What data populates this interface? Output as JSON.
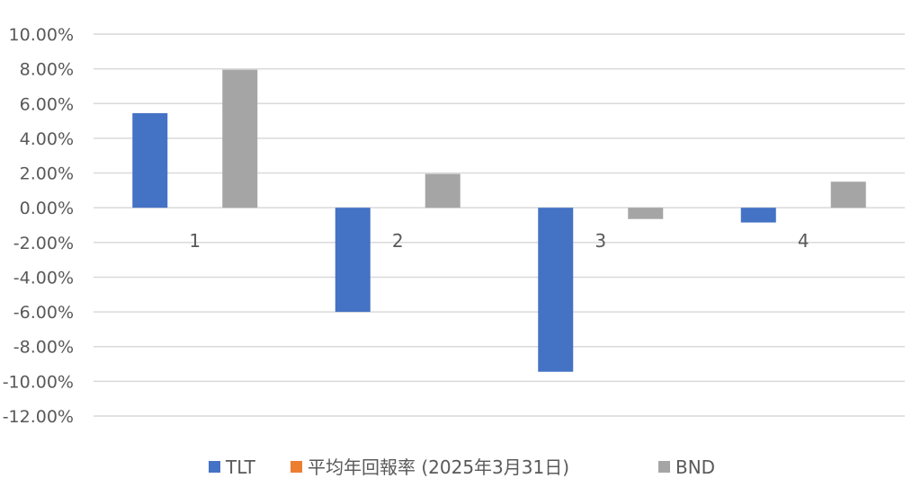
{
  "chart_data": {
    "type": "bar",
    "categories": [
      "1",
      "2",
      "3",
      "4"
    ],
    "series": [
      {
        "name": "TLT",
        "values": [
          5.45,
          -6.0,
          -9.45,
          -0.85
        ],
        "color": "#4472C4"
      },
      {
        "name": "平均年回報率 (2025年3月31日)",
        "values": [
          0,
          0,
          0,
          0
        ],
        "color": "#ED7D31"
      },
      {
        "name": "BND",
        "values": [
          7.95,
          1.95,
          -0.65,
          1.5
        ],
        "color": "#A5A5A5"
      }
    ],
    "ylim": [
      -12,
      10
    ],
    "ytick_step": 2,
    "ytick_labels": [
      "10.00%",
      "8.00%",
      "6.00%",
      "4.00%",
      "2.00%",
      "0.00%",
      "-2.00%",
      "-4.00%",
      "-6.00%",
      "-8.00%",
      "-10.00%",
      "-12.00%"
    ],
    "grid": true,
    "legend_position": "bottom",
    "title": "",
    "xlabel": "",
    "ylabel": ""
  }
}
